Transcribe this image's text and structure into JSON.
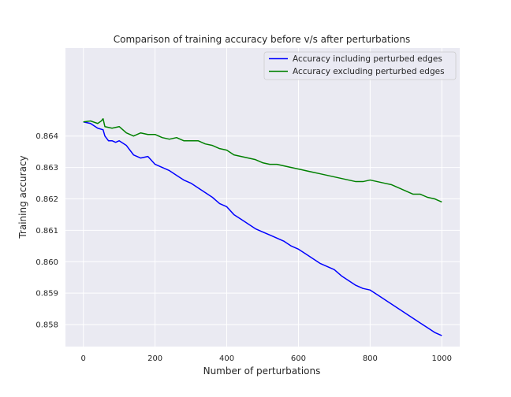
{
  "chart_data": {
    "type": "line",
    "title": "Comparison of training accuracy before v/s after perturbations",
    "xlabel": "Number of perturbations",
    "ylabel": "Training accuracy",
    "xlim": [
      -50,
      1050
    ],
    "ylim": [
      0.8573,
      0.8668
    ],
    "xticks": [
      0,
      200,
      400,
      600,
      800,
      1000
    ],
    "yticks": [
      0.858,
      0.859,
      0.86,
      0.861,
      0.862,
      0.863,
      0.864
    ],
    "xtick_labels": [
      "0",
      "200",
      "400",
      "600",
      "800",
      "1000"
    ],
    "ytick_labels": [
      "0.858",
      "0.859",
      "0.860",
      "0.861",
      "0.862",
      "0.863",
      "0.864"
    ],
    "grid": true,
    "legend_position": "top-right",
    "series": [
      {
        "name": "Accuracy including perturbed edges",
        "color": "#0000ff",
        "x": [
          0,
          20,
          40,
          55,
          60,
          70,
          80,
          90,
          100,
          120,
          140,
          160,
          180,
          200,
          220,
          240,
          260,
          280,
          300,
          320,
          340,
          360,
          380,
          400,
          420,
          440,
          460,
          480,
          500,
          520,
          540,
          560,
          580,
          600,
          620,
          640,
          660,
          680,
          700,
          720,
          740,
          760,
          780,
          800,
          820,
          840,
          860,
          880,
          900,
          920,
          940,
          960,
          980,
          1000
        ],
        "y": [
          0.86445,
          0.8644,
          0.86425,
          0.8642,
          0.864,
          0.86385,
          0.86385,
          0.8638,
          0.86385,
          0.8637,
          0.8634,
          0.8633,
          0.86335,
          0.8631,
          0.863,
          0.8629,
          0.86275,
          0.8626,
          0.8625,
          0.86235,
          0.8622,
          0.86205,
          0.86185,
          0.86175,
          0.8615,
          0.86135,
          0.8612,
          0.86105,
          0.86095,
          0.86085,
          0.86075,
          0.86065,
          0.8605,
          0.8604,
          0.86025,
          0.8601,
          0.85995,
          0.85985,
          0.85975,
          0.85955,
          0.8594,
          0.85925,
          0.85915,
          0.8591,
          0.85895,
          0.8588,
          0.85865,
          0.8585,
          0.85835,
          0.8582,
          0.85805,
          0.8579,
          0.85775,
          0.85765
        ]
      },
      {
        "name": "Accuracy excluding perturbed edges",
        "color": "#008000",
        "x": [
          0,
          20,
          40,
          50,
          55,
          60,
          80,
          100,
          120,
          140,
          160,
          180,
          200,
          220,
          240,
          260,
          280,
          300,
          320,
          340,
          360,
          380,
          400,
          420,
          440,
          460,
          480,
          500,
          520,
          540,
          560,
          580,
          600,
          620,
          640,
          660,
          680,
          700,
          720,
          740,
          760,
          780,
          800,
          820,
          840,
          860,
          880,
          900,
          920,
          940,
          960,
          980,
          1000
        ],
        "y": [
          0.86445,
          0.86448,
          0.8644,
          0.86448,
          0.86455,
          0.8643,
          0.86425,
          0.8643,
          0.8641,
          0.864,
          0.8641,
          0.86405,
          0.86405,
          0.86395,
          0.8639,
          0.86395,
          0.86385,
          0.86385,
          0.86385,
          0.86375,
          0.8637,
          0.8636,
          0.86355,
          0.8634,
          0.86335,
          0.8633,
          0.86325,
          0.86315,
          0.8631,
          0.8631,
          0.86305,
          0.863,
          0.86295,
          0.8629,
          0.86285,
          0.8628,
          0.86275,
          0.8627,
          0.86265,
          0.8626,
          0.86255,
          0.86255,
          0.8626,
          0.86255,
          0.8625,
          0.86245,
          0.86235,
          0.86225,
          0.86215,
          0.86215,
          0.86205,
          0.862,
          0.8619
        ]
      }
    ]
  }
}
